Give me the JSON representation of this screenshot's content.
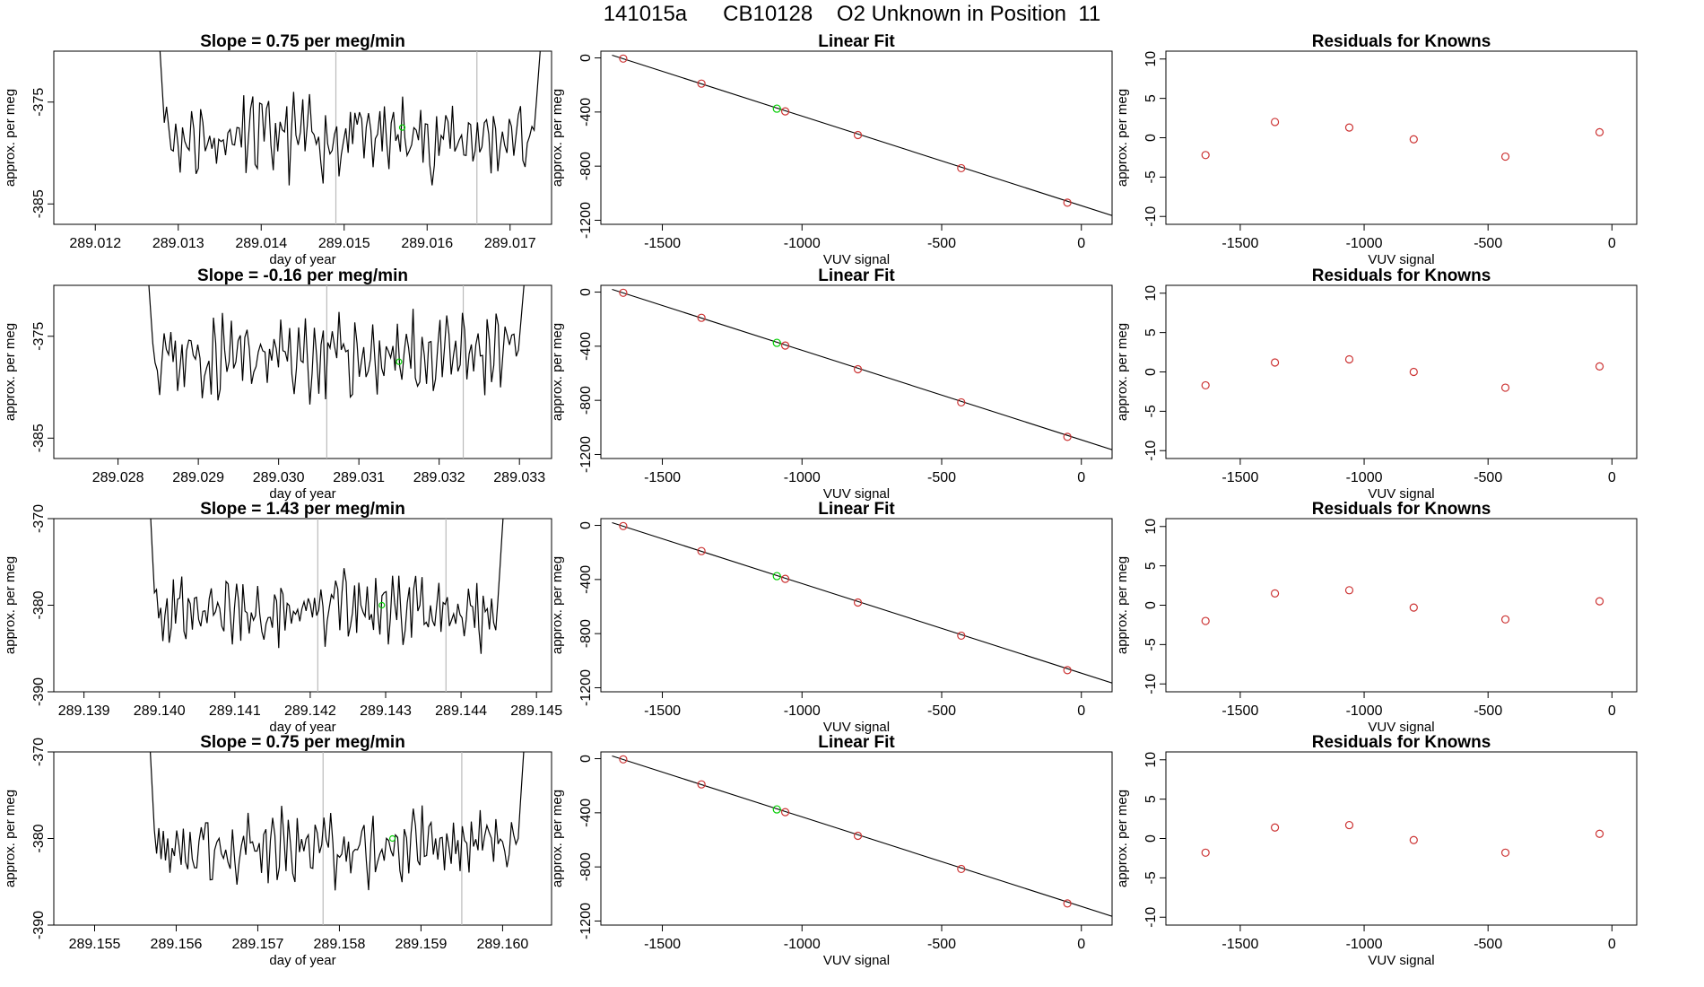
{
  "page_title": "141015a      CB10128    O2 Unknown in Position  11",
  "chart_data": [
    {
      "type": "line",
      "title": "Slope =  0.75  per meg/min",
      "xlabel": "day of year",
      "ylabel": "approx. per meg",
      "xlim": [
        289.0115,
        289.0175
      ],
      "ylim": [
        -387,
        -370
      ],
      "xticks": [
        "289.012",
        "289.013",
        "289.014",
        "289.015",
        "289.016",
        "289.017"
      ],
      "yticks": [
        "-385",
        "-375"
      ],
      "vlines": [
        289.0149,
        289.0166
      ],
      "marker": {
        "x": 289.0157,
        "y": -377.5,
        "color": "#00cc00"
      },
      "series": [
        {
          "x_start": 289.01275,
          "x_end": 289.0174,
          "baseline": -378.5,
          "amplitude": 3.0,
          "seed": 11,
          "edge_high": -366
        }
      ]
    },
    {
      "type": "scatter",
      "title": "Linear Fit",
      "xlabel": "VUV signal",
      "ylabel": "approx. per meg",
      "xlim": [
        -1720,
        110
      ],
      "ylim": [
        -1230,
        50
      ],
      "xticks": [
        "-1500",
        "-1000",
        "-500",
        "0"
      ],
      "yticks": [
        "0",
        "-400",
        "-800",
        "-1200"
      ],
      "line": {
        "x1": -1680,
        "y1": 20,
        "x2": 110,
        "y2": -1165
      },
      "points": [
        {
          "x": -1640,
          "y": -5
        },
        {
          "x": -1360,
          "y": -190
        },
        {
          "x": -1060,
          "y": -395
        },
        {
          "x": -800,
          "y": -570
        },
        {
          "x": -430,
          "y": -815
        },
        {
          "x": -50,
          "y": -1070
        }
      ],
      "highlight": {
        "x": -1090,
        "y": -375,
        "color": "#00cc00"
      },
      "point_color": "#cc3333"
    },
    {
      "type": "scatter",
      "title": "Residuals for Knowns",
      "xlabel": "VUV signal",
      "ylabel": "approx. per meg",
      "xlim": [
        -1800,
        100
      ],
      "ylim": [
        -11,
        11
      ],
      "xticks": [
        "-1500",
        "-1000",
        "-500",
        "0"
      ],
      "yticks": [
        "10",
        "5",
        "0",
        "-5",
        "-10"
      ],
      "points": [
        {
          "x": -1640,
          "y": -2.2
        },
        {
          "x": -1360,
          "y": 2.0
        },
        {
          "x": -1060,
          "y": 1.3
        },
        {
          "x": -800,
          "y": -0.2
        },
        {
          "x": -430,
          "y": -2.4
        },
        {
          "x": -50,
          "y": 0.7
        }
      ],
      "point_color": "#cc3333"
    },
    {
      "type": "line",
      "title": "Slope =  -0.16  per meg/min",
      "xlabel": "day of year",
      "ylabel": "approx. per meg",
      "xlim": [
        289.0272,
        289.0334
      ],
      "ylim": [
        -387,
        -370
      ],
      "xticks": [
        "289.028",
        "289.029",
        "289.030",
        "289.031",
        "289.032",
        "289.033"
      ],
      "yticks": [
        "-385",
        "-375"
      ],
      "vlines": [
        289.0306,
        289.0323
      ],
      "marker": {
        "x": 289.0315,
        "y": -377.5,
        "color": "#00cc00"
      },
      "series": [
        {
          "x_start": 289.02835,
          "x_end": 289.0331,
          "baseline": -377.0,
          "amplitude": 3.0,
          "seed": 23,
          "edge_high": -366
        }
      ]
    },
    {
      "type": "scatter",
      "title": "Linear Fit",
      "xlabel": "VUV signal",
      "ylabel": "approx. per meg",
      "xlim": [
        -1720,
        110
      ],
      "ylim": [
        -1230,
        50
      ],
      "xticks": [
        "-1500",
        "-1000",
        "-500",
        "0"
      ],
      "yticks": [
        "0",
        "-400",
        "-800",
        "-1200"
      ],
      "line": {
        "x1": -1680,
        "y1": 20,
        "x2": 110,
        "y2": -1165
      },
      "points": [
        {
          "x": -1640,
          "y": -5
        },
        {
          "x": -1360,
          "y": -190
        },
        {
          "x": -1060,
          "y": -395
        },
        {
          "x": -800,
          "y": -570
        },
        {
          "x": -430,
          "y": -815
        },
        {
          "x": -50,
          "y": -1070
        }
      ],
      "highlight": {
        "x": -1090,
        "y": -375,
        "color": "#00cc00"
      },
      "point_color": "#cc3333"
    },
    {
      "type": "scatter",
      "title": "Residuals for Knowns",
      "xlabel": "VUV signal",
      "ylabel": "approx. per meg",
      "xlim": [
        -1800,
        100
      ],
      "ylim": [
        -11,
        11
      ],
      "xticks": [
        "-1500",
        "-1000",
        "-500",
        "0"
      ],
      "yticks": [
        "10",
        "5",
        "0",
        "-5",
        "-10"
      ],
      "points": [
        {
          "x": -1640,
          "y": -1.7
        },
        {
          "x": -1360,
          "y": 1.2
        },
        {
          "x": -1060,
          "y": 1.6
        },
        {
          "x": -800,
          "y": 0.0
        },
        {
          "x": -430,
          "y": -2.0
        },
        {
          "x": -50,
          "y": 0.7
        }
      ],
      "point_color": "#cc3333"
    },
    {
      "type": "line",
      "title": "Slope =  1.43  per meg/min",
      "xlabel": "day of year",
      "ylabel": "approx. per meg",
      "xlim": [
        289.1386,
        289.1452
      ],
      "ylim": [
        -390,
        -370
      ],
      "xticks": [
        "289.139",
        "289.140",
        "289.141",
        "289.142",
        "289.143",
        "289.144",
        "289.145"
      ],
      "yticks": [
        "-370",
        "-380",
        "-390"
      ],
      "vlines": [
        289.1421,
        289.1438
      ],
      "marker": {
        "x": 289.14295,
        "y": -380.0,
        "color": "#00cc00"
      },
      "series": [
        {
          "x_start": 289.13985,
          "x_end": 289.1446,
          "baseline": -380.5,
          "amplitude": 3.2,
          "seed": 37,
          "edge_high": -364
        }
      ]
    },
    {
      "type": "scatter",
      "title": "Linear Fit",
      "xlabel": "VUV signal",
      "ylabel": "approx. per meg",
      "xlim": [
        -1720,
        110
      ],
      "ylim": [
        -1230,
        50
      ],
      "xticks": [
        "-1500",
        "-1000",
        "-500",
        "0"
      ],
      "yticks": [
        "0",
        "-400",
        "-800",
        "-1200"
      ],
      "line": {
        "x1": -1680,
        "y1": 20,
        "x2": 110,
        "y2": -1165
      },
      "points": [
        {
          "x": -1640,
          "y": -5
        },
        {
          "x": -1360,
          "y": -190
        },
        {
          "x": -1060,
          "y": -395
        },
        {
          "x": -800,
          "y": -570
        },
        {
          "x": -430,
          "y": -815
        },
        {
          "x": -50,
          "y": -1070
        }
      ],
      "highlight": {
        "x": -1090,
        "y": -375,
        "color": "#00cc00"
      },
      "point_color": "#cc3333"
    },
    {
      "type": "scatter",
      "title": "Residuals for Knowns",
      "xlabel": "VUV signal",
      "ylabel": "approx. per meg",
      "xlim": [
        -1800,
        100
      ],
      "ylim": [
        -11,
        11
      ],
      "xticks": [
        "-1500",
        "-1000",
        "-500",
        "0"
      ],
      "yticks": [
        "10",
        "5",
        "0",
        "-5",
        "-10"
      ],
      "points": [
        {
          "x": -1640,
          "y": -2.0
        },
        {
          "x": -1360,
          "y": 1.5
        },
        {
          "x": -1060,
          "y": 1.9
        },
        {
          "x": -800,
          "y": -0.3
        },
        {
          "x": -430,
          "y": -1.8
        },
        {
          "x": -50,
          "y": 0.5
        }
      ],
      "point_color": "#cc3333"
    },
    {
      "type": "line",
      "title": "Slope =  0.75  per meg/min",
      "xlabel": "day of year",
      "ylabel": "approx. per meg",
      "xlim": [
        289.1545,
        289.1606
      ],
      "ylim": [
        -390,
        -370
      ],
      "xticks": [
        "289.155",
        "289.156",
        "289.157",
        "289.158",
        "289.159",
        "289.160"
      ],
      "yticks": [
        "-370",
        "-380",
        "-390"
      ],
      "vlines": [
        289.1578,
        289.1595
      ],
      "marker": {
        "x": 289.15865,
        "y": -380.0,
        "color": "#00cc00"
      },
      "series": [
        {
          "x_start": 289.15565,
          "x_end": 289.1603,
          "baseline": -381.0,
          "amplitude": 3.2,
          "seed": 53,
          "edge_high": -364
        }
      ]
    },
    {
      "type": "scatter",
      "title": "Linear Fit",
      "xlabel": "VUV signal",
      "ylabel": "approx. per meg",
      "xlim": [
        -1720,
        110
      ],
      "ylim": [
        -1230,
        50
      ],
      "xticks": [
        "-1500",
        "-1000",
        "-500",
        "0"
      ],
      "yticks": [
        "0",
        "-400",
        "-800",
        "-1200"
      ],
      "line": {
        "x1": -1680,
        "y1": 20,
        "x2": 110,
        "y2": -1165
      },
      "points": [
        {
          "x": -1640,
          "y": -5
        },
        {
          "x": -1360,
          "y": -190
        },
        {
          "x": -1060,
          "y": -395
        },
        {
          "x": -800,
          "y": -570
        },
        {
          "x": -430,
          "y": -815
        },
        {
          "x": -50,
          "y": -1070
        }
      ],
      "highlight": {
        "x": -1090,
        "y": -375,
        "color": "#00cc00"
      },
      "point_color": "#cc3333"
    },
    {
      "type": "scatter",
      "title": "Residuals for Knowns",
      "xlabel": "VUV signal",
      "ylabel": "approx. per meg",
      "xlim": [
        -1800,
        100
      ],
      "ylim": [
        -11,
        11
      ],
      "xticks": [
        "-1500",
        "-1000",
        "-500",
        "0"
      ],
      "yticks": [
        "10",
        "5",
        "0",
        "-5",
        "-10"
      ],
      "points": [
        {
          "x": -1640,
          "y": -1.8
        },
        {
          "x": -1360,
          "y": 1.4
        },
        {
          "x": -1060,
          "y": 1.7
        },
        {
          "x": -800,
          "y": -0.2
        },
        {
          "x": -430,
          "y": -1.8
        },
        {
          "x": -50,
          "y": 0.6
        }
      ],
      "point_color": "#cc3333"
    }
  ]
}
